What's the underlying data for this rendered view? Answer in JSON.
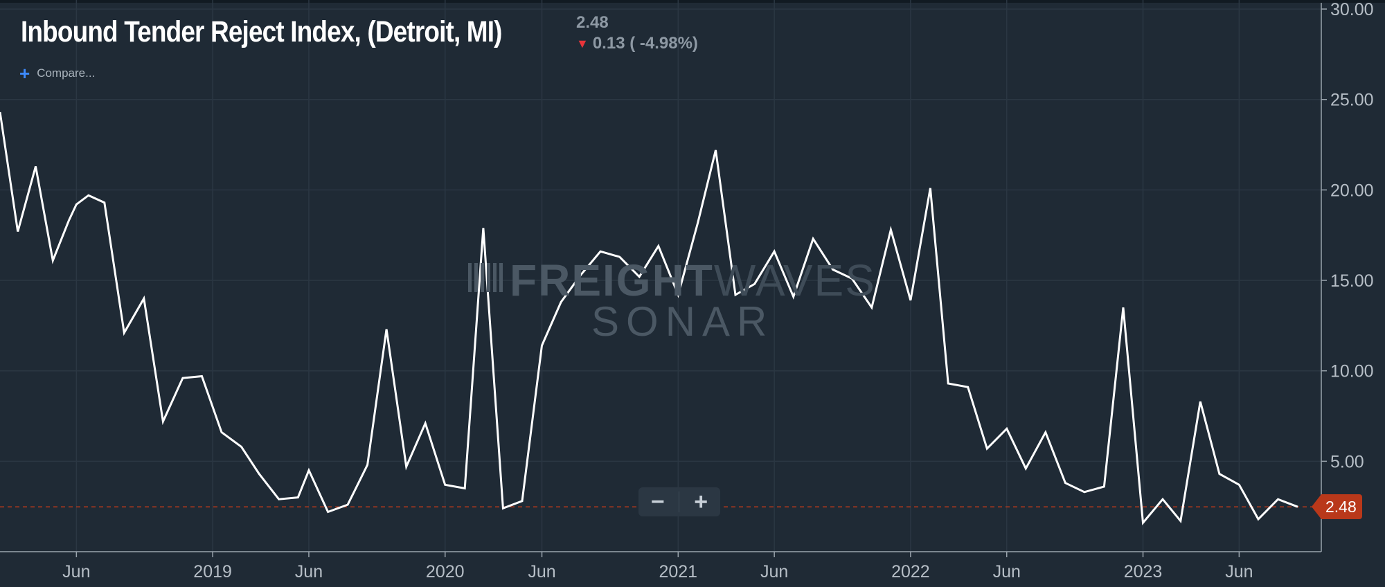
{
  "header": {
    "title": "Inbound Tender Reject Index, (Detroit, MI)",
    "last_value": "2.48",
    "change_text": "0.13 ( -4.98%)",
    "change_direction_icon": "down-arrow-icon",
    "compare_label": "Compare...",
    "compare_icon": "plus-icon"
  },
  "watermark": {
    "line1_bold": "FREIGHT",
    "line1_thin": "WAVES",
    "line2": "SONAR"
  },
  "zoom": {
    "minus_label": "−",
    "plus_label": "+"
  },
  "price_tag": {
    "label": "2.48"
  },
  "colors": {
    "background": "#1f2a35",
    "line": "#ffffff",
    "grid": "#2b3743",
    "axis_text": "#b6bec6",
    "last_price_line": "#b9381a",
    "down": "#e8343a"
  },
  "chart_data": {
    "type": "line",
    "title": "Inbound Tender Reject Index, (Detroit, MI)",
    "xlabel": "",
    "ylabel": "",
    "ylim": [
      0,
      30.5
    ],
    "yticks": [
      5,
      10,
      15,
      20,
      25,
      30
    ],
    "ytick_labels": [
      "5.00",
      "10.00",
      "15.00",
      "20.00",
      "25.00",
      "30.00"
    ],
    "xlim": [
      "2018-02-01",
      "2023-10-08"
    ],
    "xticks": [
      {
        "date": "2018-06-01",
        "label": "Jun"
      },
      {
        "date": "2019-01-01",
        "label": "2019"
      },
      {
        "date": "2019-06-01",
        "label": "Jun"
      },
      {
        "date": "2020-01-01",
        "label": "2020"
      },
      {
        "date": "2020-06-01",
        "label": "Jun"
      },
      {
        "date": "2021-01-01",
        "label": "2021"
      },
      {
        "date": "2021-06-01",
        "label": "Jun"
      },
      {
        "date": "2022-01-01",
        "label": "2022"
      },
      {
        "date": "2022-06-01",
        "label": "Jun"
      },
      {
        "date": "2023-01-01",
        "label": "2023"
      },
      {
        "date": "2023-06-01",
        "label": "Jun"
      }
    ],
    "grid": true,
    "last_value": 2.48,
    "series": [
      {
        "values": [
          [
            "2018-02-01",
            24.3
          ],
          [
            "2018-03-01",
            17.7
          ],
          [
            "2018-03-29",
            21.3
          ],
          [
            "2018-04-25",
            16.1
          ],
          [
            "2018-05-20",
            18.3
          ],
          [
            "2018-06-01",
            19.2
          ],
          [
            "2018-06-20",
            19.7
          ],
          [
            "2018-07-15",
            19.3
          ],
          [
            "2018-08-15",
            12.1
          ],
          [
            "2018-09-15",
            14.0
          ],
          [
            "2018-10-15",
            7.2
          ],
          [
            "2018-11-15",
            9.6
          ],
          [
            "2018-12-15",
            9.7
          ],
          [
            "2019-01-15",
            6.6
          ],
          [
            "2019-02-15",
            5.8
          ],
          [
            "2019-03-15",
            4.3
          ],
          [
            "2019-04-15",
            2.9
          ],
          [
            "2019-05-15",
            3.0
          ],
          [
            "2019-06-01",
            4.5
          ],
          [
            "2019-07-01",
            2.2
          ],
          [
            "2019-08-01",
            2.6
          ],
          [
            "2019-09-01",
            4.8
          ],
          [
            "2019-10-01",
            12.3
          ],
          [
            "2019-11-01",
            4.7
          ],
          [
            "2019-12-01",
            7.1
          ],
          [
            "2020-01-01",
            3.7
          ],
          [
            "2020-02-01",
            3.5
          ],
          [
            "2020-03-01",
            17.9
          ],
          [
            "2020-04-01",
            2.4
          ],
          [
            "2020-05-01",
            2.8
          ],
          [
            "2020-06-01",
            11.4
          ],
          [
            "2020-07-01",
            13.8
          ],
          [
            "2020-08-01",
            15.3
          ],
          [
            "2020-09-01",
            16.6
          ],
          [
            "2020-10-01",
            16.3
          ],
          [
            "2020-11-01",
            15.2
          ],
          [
            "2020-12-01",
            16.9
          ],
          [
            "2021-01-01",
            14.2
          ],
          [
            "2021-02-01",
            18.2
          ],
          [
            "2021-03-01",
            22.2
          ],
          [
            "2021-04-01",
            14.2
          ],
          [
            "2021-05-01",
            14.8
          ],
          [
            "2021-06-01",
            16.6
          ],
          [
            "2021-07-01",
            14.1
          ],
          [
            "2021-08-01",
            17.3
          ],
          [
            "2021-09-01",
            15.6
          ],
          [
            "2021-10-01",
            15.1
          ],
          [
            "2021-11-01",
            13.5
          ],
          [
            "2021-12-01",
            17.8
          ],
          [
            "2022-01-01",
            13.9
          ],
          [
            "2022-02-01",
            20.1
          ],
          [
            "2022-03-01",
            9.3
          ],
          [
            "2022-04-01",
            9.1
          ],
          [
            "2022-05-01",
            5.7
          ],
          [
            "2022-06-01",
            6.8
          ],
          [
            "2022-07-01",
            4.6
          ],
          [
            "2022-08-01",
            6.6
          ],
          [
            "2022-09-01",
            3.8
          ],
          [
            "2022-10-01",
            3.3
          ],
          [
            "2022-11-01",
            3.6
          ],
          [
            "2022-12-01",
            13.5
          ],
          [
            "2023-01-01",
            1.6
          ],
          [
            "2023-02-01",
            2.9
          ],
          [
            "2023-03-01",
            1.7
          ],
          [
            "2023-04-01",
            8.3
          ],
          [
            "2023-05-01",
            4.3
          ],
          [
            "2023-06-01",
            3.7
          ],
          [
            "2023-07-01",
            1.8
          ],
          [
            "2023-08-01",
            2.9
          ],
          [
            "2023-09-01",
            2.48
          ]
        ]
      }
    ]
  }
}
